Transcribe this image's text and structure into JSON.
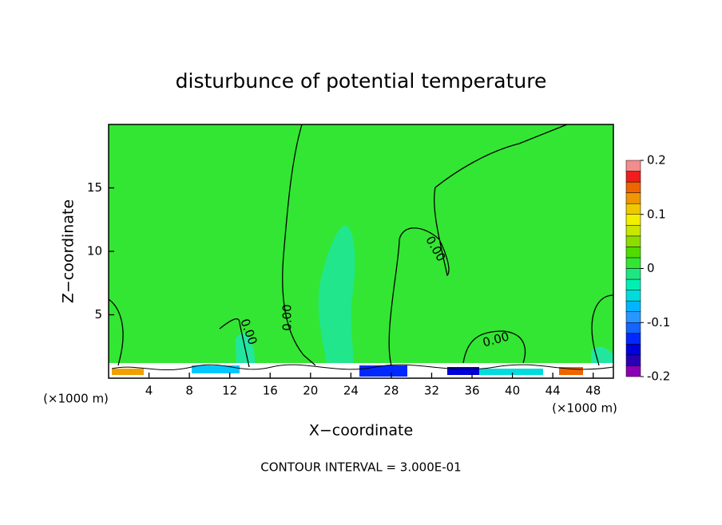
{
  "chart_data": {
    "type": "contour",
    "title": "disturbunce of potential temperature",
    "x_label": "X−coordinate",
    "y_label": "Z−coordinate",
    "x_unit_labels": [
      "(×1000 m)",
      "(×1000 m)"
    ],
    "footer": "CONTOUR INTERVAL = 3.000E-01",
    "contour_labels": [
      "0.00",
      "0.00",
      "0.00",
      "0.00"
    ],
    "xlim": [
      0,
      50
    ],
    "xticks": [
      4,
      8,
      12,
      16,
      20,
      24,
      28,
      32,
      36,
      40,
      44,
      48
    ],
    "ylim": [
      0,
      20
    ],
    "yticks": [
      5,
      10,
      15
    ],
    "colorbar": {
      "levels": [
        -0.2,
        -0.18,
        -0.16,
        -0.14,
        -0.12,
        -0.1,
        -0.08,
        -0.06,
        -0.04,
        -0.02,
        0,
        0.02,
        0.04,
        0.06,
        0.08,
        0.1,
        0.12,
        0.14,
        0.16,
        0.18,
        0.2
      ],
      "colors": [
        "#8c00b4",
        "#2800b4",
        "#0000dc",
        "#0028ff",
        "#1464ff",
        "#2896ff",
        "#00b4ff",
        "#00dcdc",
        "#00f0b4",
        "#1ee682",
        "#32e632",
        "#50dc00",
        "#8cdc00",
        "#c8e600",
        "#f0f000",
        "#f0c800",
        "#f09600",
        "#f06400",
        "#f01e1e",
        "#f58c8c"
      ],
      "ticks": [
        -0.2,
        -0.1,
        0,
        0.1,
        0.2
      ]
    }
  }
}
